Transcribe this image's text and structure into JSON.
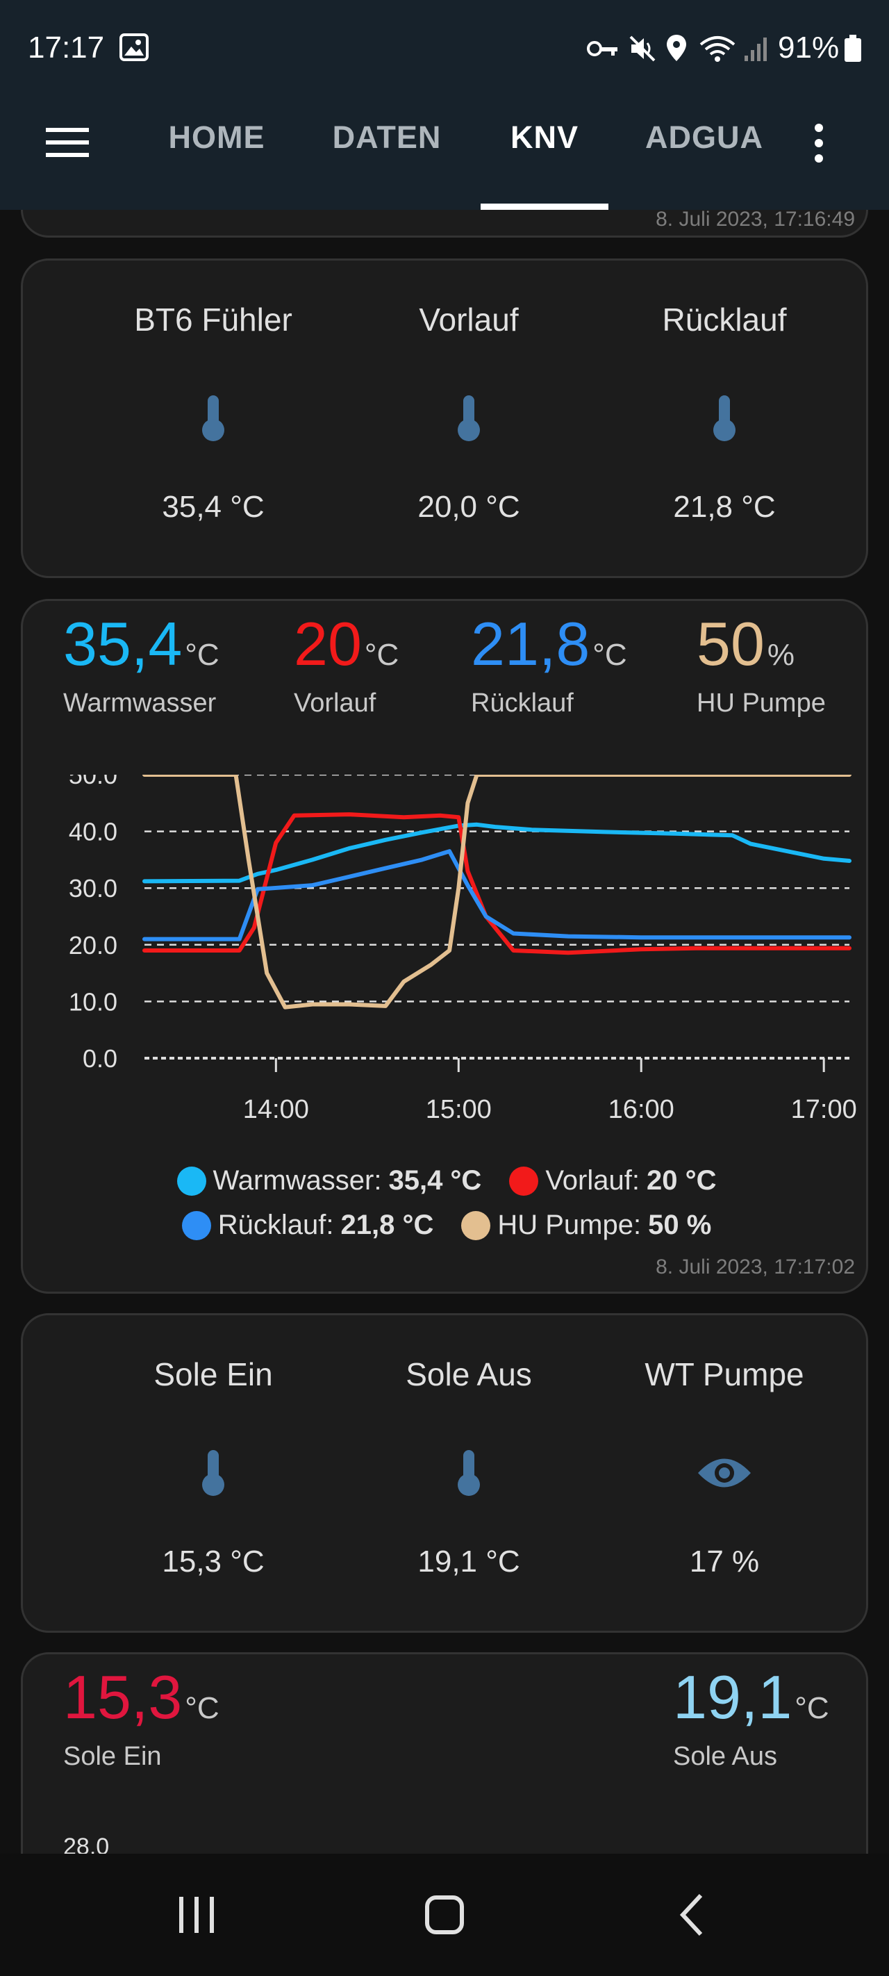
{
  "status_bar": {
    "time": "17:17",
    "battery": "91%"
  },
  "tabs": [
    {
      "label": "HOME"
    },
    {
      "label": "DATEN"
    },
    {
      "label": "KNV"
    },
    {
      "label": "ADGUA"
    }
  ],
  "active_tab": "KNV",
  "prev_card": {
    "timestamp": "8. Juli 2023, 17:16:49"
  },
  "card1": {
    "items": [
      {
        "title": "BT6 Fühler",
        "icon": "thermometer-icon",
        "value": "35,4 °C"
      },
      {
        "title": "Vorlauf",
        "icon": "thermometer-icon",
        "value": "20,0 °C"
      },
      {
        "title": "Rücklauf",
        "icon": "thermometer-icon",
        "value": "21,8 °C"
      }
    ]
  },
  "chart_card": {
    "header": [
      {
        "value": "35,4",
        "unit": "°C",
        "label": "Warmwasser",
        "color": "#1ab8f5"
      },
      {
        "value": "20",
        "unit": "°C",
        "label": "Vorlauf",
        "color": "#f21a1a"
      },
      {
        "value": "21,8",
        "unit": "°C",
        "label": "Rücklauf",
        "color": "#2e8ef5"
      },
      {
        "value": "50",
        "unit": "%",
        "label": "HU Pumpe",
        "color": "#e3bf90"
      }
    ],
    "legend": [
      {
        "name": "Warmwasser:",
        "value": "35,4 °C",
        "color": "#1ab8f5"
      },
      {
        "name": "Vorlauf:",
        "value": "20 °C",
        "color": "#f21a1a"
      },
      {
        "name": "Rücklauf:",
        "value": "21,8 °C",
        "color": "#2e8ef5"
      },
      {
        "name": "HU Pumpe:",
        "value": "50 %",
        "color": "#e3bf90"
      }
    ],
    "timestamp": "8. Juli 2023, 17:17:02"
  },
  "chart_data": {
    "type": "line",
    "x_ticks": [
      "14:00",
      "15:00",
      "16:00",
      "17:00"
    ],
    "y_ticks": [
      "50.0",
      "40.0",
      "30.0",
      "20.0",
      "10.0",
      "0.0"
    ],
    "ylim": [
      0,
      50
    ],
    "xlim": [
      13.28,
      17.14
    ],
    "grid": "dashed-horizontal",
    "series": [
      {
        "name": "Warmwasser",
        "color": "#1ab8f5",
        "x": [
          13.28,
          13.8,
          13.9,
          14.0,
          14.2,
          14.4,
          14.6,
          14.8,
          15.0,
          15.1,
          15.2,
          15.4,
          15.8,
          16.2,
          16.5,
          16.6,
          16.8,
          17.0,
          17.14
        ],
        "y": [
          31.2,
          31.3,
          32.5,
          33.2,
          35.0,
          37.0,
          38.5,
          39.8,
          41.0,
          41.2,
          40.8,
          40.3,
          39.9,
          39.6,
          39.3,
          37.8,
          36.5,
          35.2,
          34.8
        ]
      },
      {
        "name": "Vorlauf",
        "color": "#f21a1a",
        "x": [
          13.28,
          13.8,
          13.88,
          14.0,
          14.1,
          14.4,
          14.7,
          14.9,
          15.0,
          15.05,
          15.15,
          15.3,
          15.6,
          16.0,
          16.3,
          17.14
        ],
        "y": [
          19.0,
          19.0,
          23.0,
          38.0,
          42.8,
          43.0,
          42.5,
          42.8,
          42.5,
          33.0,
          25.0,
          19.0,
          18.6,
          19.2,
          19.4,
          19.4
        ]
      },
      {
        "name": "Rücklauf",
        "color": "#2e8ef5",
        "x": [
          13.28,
          13.8,
          13.9,
          14.2,
          14.4,
          14.6,
          14.8,
          14.95,
          15.05,
          15.15,
          15.3,
          15.6,
          16.0,
          17.14
        ],
        "y": [
          21.0,
          21.0,
          29.8,
          30.5,
          32.0,
          33.5,
          35.0,
          36.5,
          30.5,
          25.0,
          22.0,
          21.5,
          21.3,
          21.3
        ]
      },
      {
        "name": "HU Pumpe",
        "color": "#e3bf90",
        "x": [
          13.28,
          13.78,
          13.85,
          13.95,
          14.05,
          14.2,
          14.4,
          14.6,
          14.7,
          14.85,
          14.95,
          15.0,
          15.05,
          15.1,
          17.14
        ],
        "y": [
          50,
          50,
          35,
          15,
          9,
          9.5,
          9.5,
          9.2,
          13.5,
          16.5,
          19.0,
          30.0,
          45.0,
          50,
          50
        ]
      }
    ]
  },
  "card3": {
    "items": [
      {
        "title": "Sole Ein",
        "icon": "thermometer-icon",
        "value": "15,3 °C"
      },
      {
        "title": "Sole Aus",
        "icon": "thermometer-icon",
        "value": "19,1 °C"
      },
      {
        "title": "WT Pumpe",
        "icon": "eye-icon",
        "value": "17 %"
      }
    ]
  },
  "card4": {
    "left": {
      "value": "15,3",
      "unit": "°C",
      "label": "Sole Ein",
      "color": "#e0163e"
    },
    "right": {
      "value": "19,1",
      "unit": "°C",
      "label": "Sole Aus",
      "color": "#8fd3f2"
    },
    "first_tick": "28.0"
  }
}
